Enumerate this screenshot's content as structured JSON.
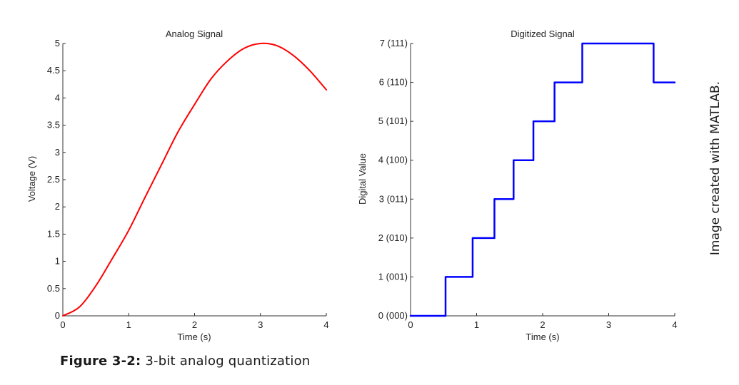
{
  "chart_data": [
    {
      "type": "line",
      "title": "Analog Signal",
      "xlabel": "Time (s)",
      "ylabel": "Voltage (V)",
      "xlim": [
        0,
        4
      ],
      "ylim": [
        0,
        5
      ],
      "xticks": [
        "0",
        "1",
        "2",
        "3",
        "4"
      ],
      "yticks": [
        "0",
        "0.5",
        "1",
        "1.5",
        "2",
        "2.5",
        "3",
        "3.5",
        "4",
        "4.5",
        "5"
      ],
      "grid": false,
      "color": "#ff0000",
      "series": [
        {
          "x": [
            0,
            0.25,
            0.5,
            0.75,
            1,
            1.25,
            1.5,
            1.75,
            2,
            2.25,
            2.5,
            2.75,
            3,
            3.25,
            3.5,
            3.75,
            4
          ],
          "values": [
            0,
            0.16,
            0.55,
            1.05,
            1.57,
            2.18,
            2.78,
            3.38,
            3.88,
            4.35,
            4.68,
            4.91,
            5.0,
            4.96,
            4.78,
            4.5,
            4.15
          ]
        }
      ]
    },
    {
      "type": "line",
      "title": "Digitized Signal",
      "xlabel": "Time (s)",
      "ylabel": "Digital Value",
      "xlim": [
        0,
        4
      ],
      "ylim": [
        0,
        7
      ],
      "xticks": [
        "0",
        "1",
        "2",
        "3",
        "4"
      ],
      "yticks": [
        "0 (000)",
        "1 (001)",
        "2 (010)",
        "3 (011)",
        "4 (100)",
        "5 (101)",
        "6 (110)",
        "7 (111)"
      ],
      "grid": false,
      "color": "#0000ff",
      "series": [
        {
          "x": [
            0,
            0.53,
            0.53,
            0.94,
            0.94,
            1.27,
            1.27,
            1.56,
            1.56,
            1.86,
            1.86,
            2.18,
            2.18,
            2.6,
            2.6,
            3.68,
            3.68,
            4.0
          ],
          "values": [
            0,
            0,
            1,
            1,
            2,
            2,
            3,
            3,
            4,
            4,
            5,
            5,
            6,
            6,
            7,
            7,
            6,
            6
          ]
        }
      ]
    }
  ],
  "caption": {
    "label": "Figure 3-2:",
    "text": " 3-bit analog quantization"
  },
  "credit": "Image created with MATLAB."
}
